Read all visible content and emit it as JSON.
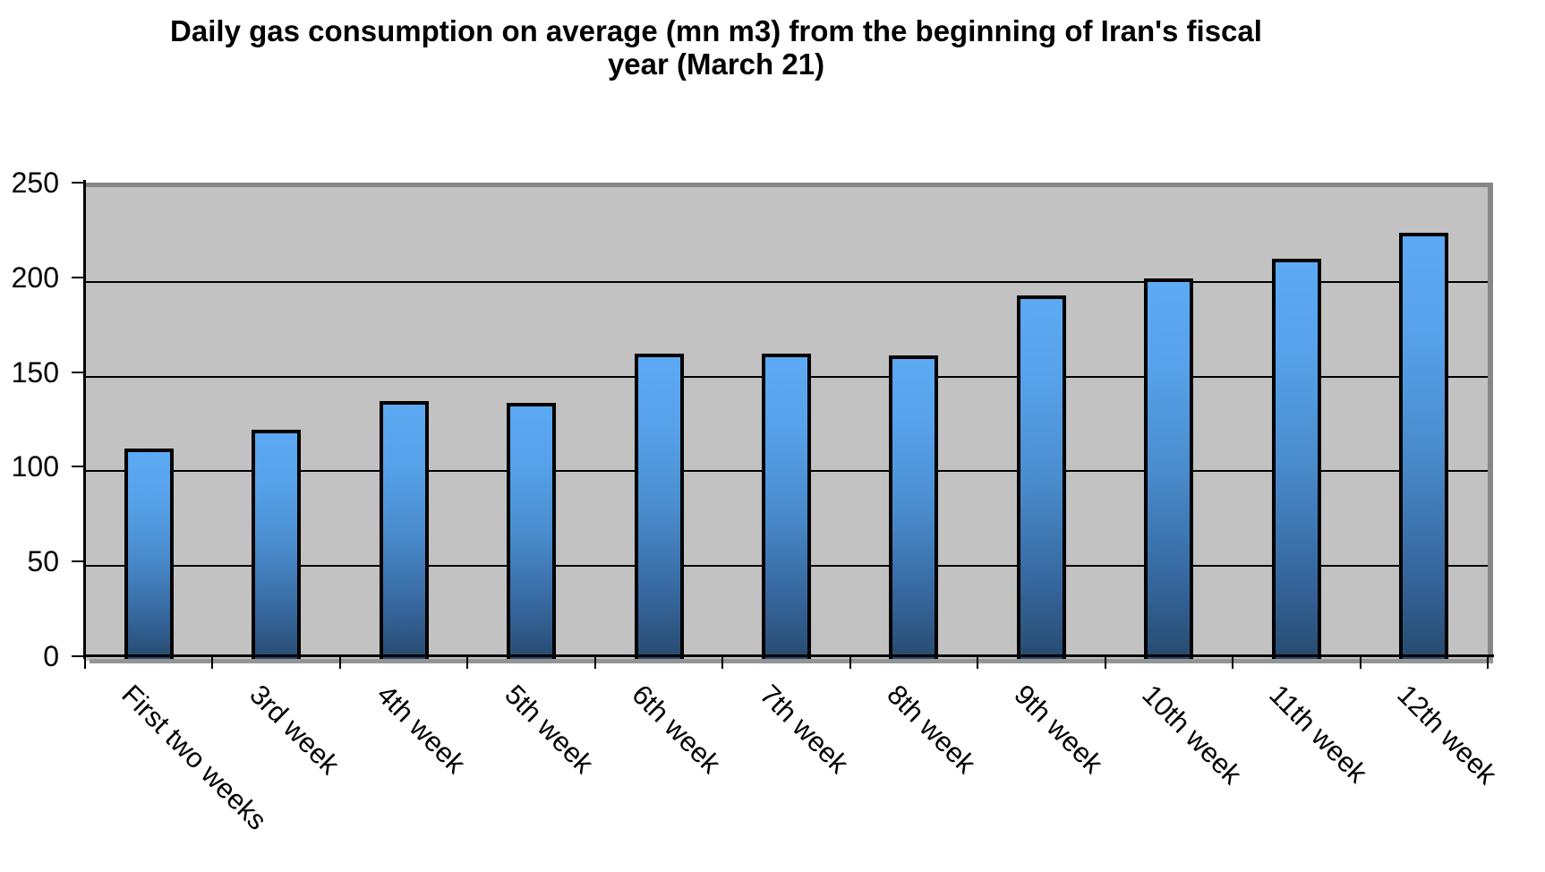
{
  "chart_data": {
    "type": "bar",
    "title": "Daily gas consumption on average (mn m3) from the beginning of Iran's fiscal year (March 21)",
    "title_lines": [
      "Daily gas consumption on average (mn m3) from the beginning of Iran's fiscal",
      "year (March 21)"
    ],
    "categories": [
      "First two weeks",
      "3rd week",
      "4th week",
      "5th week",
      "6th week",
      "7th week",
      "8th week",
      "9th week",
      "10th week",
      "11th week",
      "12th week"
    ],
    "values": [
      112,
      122,
      137,
      136,
      162,
      162,
      161,
      193,
      202,
      212,
      226
    ],
    "xlabel": "",
    "ylabel": "",
    "ylim": [
      0,
      250
    ],
    "yticks": [
      0,
      50,
      100,
      150,
      200,
      250
    ],
    "grid": true,
    "legend_position": "none",
    "colors": {
      "bar_gradient_top": "#5da9f3",
      "bar_gradient_bottom": "#274a6e",
      "bar_border": "#000000",
      "plot_background": "#c2c2c2",
      "plot_frame": "#868686",
      "gridline": "#000000",
      "axis": "#000000",
      "text": "#000000"
    }
  }
}
